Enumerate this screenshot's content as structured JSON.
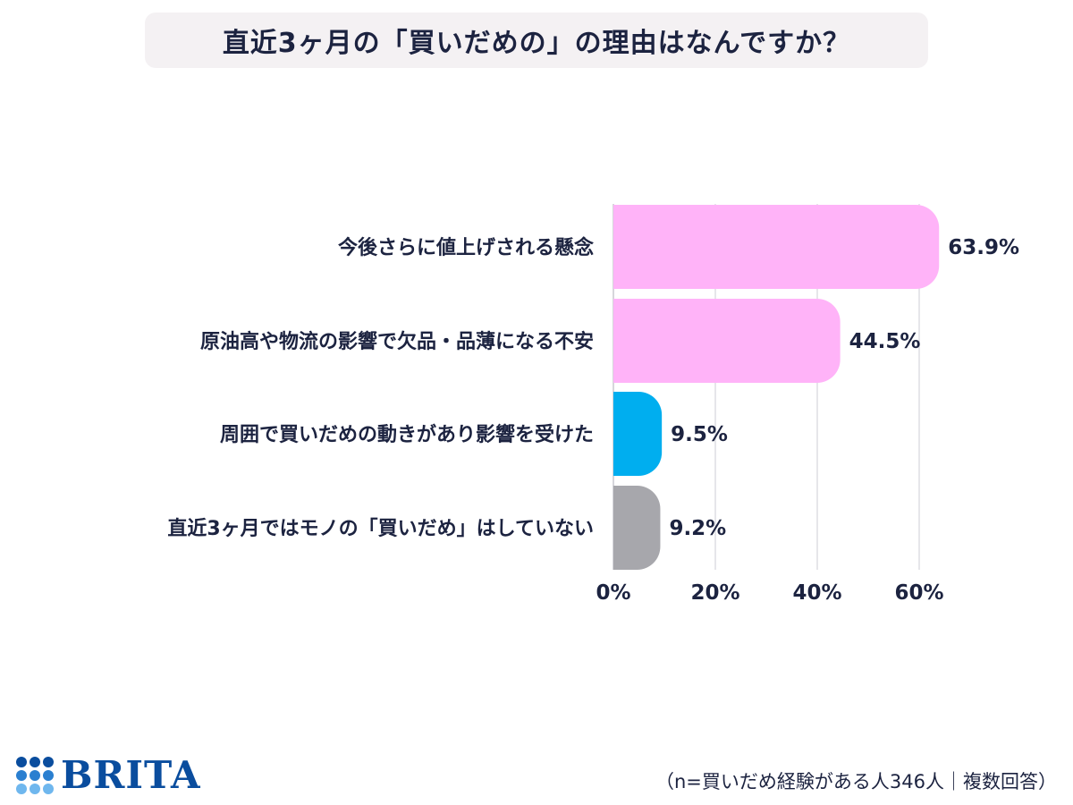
{
  "title": "直近3ヶ月の「買いだめの」の理由はなんですか？",
  "footnote": "（n=買いだめ経験がある人346人｜複数回答）",
  "logo": {
    "text": "BRITA",
    "icon": "brita-dots-icon",
    "color": "#0a4d9e"
  },
  "chart_data": {
    "type": "bar",
    "orientation": "horizontal",
    "categories": [
      "今後さらに値上げされる懸念",
      "原油高や物流の影響で欠品・品薄になる不安",
      "周囲で買いだめの動きがあり影響を受けた",
      "直近3ヶ月ではモノの「買いだめ」はしていない"
    ],
    "values": [
      63.9,
      44.5,
      9.5,
      9.2
    ],
    "value_labels": [
      "63.9%",
      "44.5%",
      "9.5%",
      "9.2%"
    ],
    "colors": [
      "#ffb3f8",
      "#ffb3f8",
      "#00aeef",
      "#a7a7ac"
    ],
    "xlim": [
      0,
      60
    ],
    "xticks": [
      0,
      20,
      40,
      60
    ],
    "xtick_labels": [
      "0%",
      "20%",
      "40%",
      "60%"
    ],
    "grid": true,
    "title": "直近3ヶ月の「買いだめの」の理由はなんですか？"
  }
}
